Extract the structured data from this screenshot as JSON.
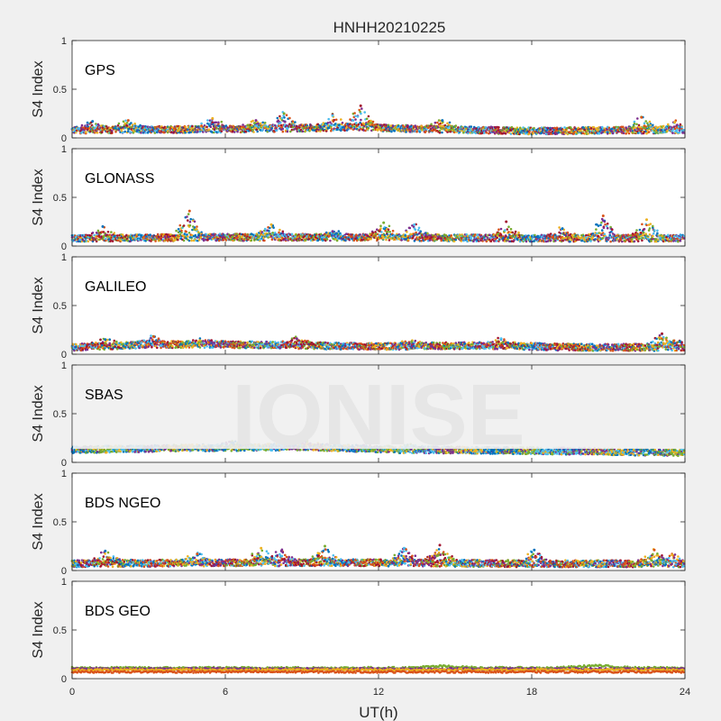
{
  "figure": {
    "title": "HNHH20210225",
    "xlabel": "UT(h)",
    "watermark": "IONISE",
    "background_color": "#f0f0f0",
    "axes_color": "#ffffff"
  },
  "chart_data": [
    {
      "type": "scatter",
      "system": "GPS",
      "title": "HNHH20210225",
      "ylabel": "S4 Index",
      "xlim": [
        0,
        24
      ],
      "ylim": [
        0,
        1
      ],
      "xticks": [
        0,
        6,
        12,
        18,
        24
      ],
      "yticks": [
        0,
        0.5,
        1
      ],
      "series_colors": [
        "#0072BD",
        "#D95319",
        "#EDB120",
        "#7E2F8E",
        "#77AC30",
        "#4DBEEE",
        "#A2142F"
      ],
      "baseline": [
        [
          0,
          0.08
        ],
        [
          6,
          0.09
        ],
        [
          9,
          0.1
        ],
        [
          11,
          0.11
        ],
        [
          14,
          0.09
        ],
        [
          18,
          0.07
        ],
        [
          22,
          0.08
        ],
        [
          24,
          0.08
        ]
      ],
      "peaks": [
        [
          0.8,
          0.17
        ],
        [
          2.2,
          0.18
        ],
        [
          5.5,
          0.2
        ],
        [
          7.2,
          0.18
        ],
        [
          8.3,
          0.25
        ],
        [
          10.2,
          0.23
        ],
        [
          11.3,
          0.33
        ],
        [
          14.5,
          0.18
        ],
        [
          22.3,
          0.21
        ],
        [
          23.6,
          0.16
        ]
      ]
    },
    {
      "type": "scatter",
      "system": "GLONASS",
      "ylabel": "S4 Index",
      "xlim": [
        0,
        24
      ],
      "ylim": [
        0,
        1
      ],
      "xticks": [
        0,
        6,
        12,
        18,
        24
      ],
      "yticks": [
        0,
        0.5,
        1
      ],
      "series_colors": [
        "#0072BD",
        "#D95319",
        "#EDB120",
        "#7E2F8E",
        "#77AC30",
        "#4DBEEE",
        "#A2142F"
      ],
      "baseline": [
        [
          0,
          0.08
        ],
        [
          6,
          0.09
        ],
        [
          12,
          0.09
        ],
        [
          18,
          0.08
        ],
        [
          24,
          0.08
        ]
      ],
      "peaks": [
        [
          1.2,
          0.2
        ],
        [
          4.6,
          0.36
        ],
        [
          7.8,
          0.22
        ],
        [
          10.2,
          0.15
        ],
        [
          12.2,
          0.24
        ],
        [
          13.4,
          0.22
        ],
        [
          17.0,
          0.25
        ],
        [
          19.2,
          0.18
        ],
        [
          20.8,
          0.31
        ],
        [
          22.5,
          0.27
        ]
      ]
    },
    {
      "type": "scatter",
      "system": "GALILEO",
      "ylabel": "S4 Index",
      "xlim": [
        0,
        24
      ],
      "ylim": [
        0,
        1
      ],
      "xticks": [
        0,
        6,
        12,
        18,
        24
      ],
      "yticks": [
        0,
        0.5,
        1
      ],
      "series_colors": [
        "#0072BD",
        "#D95319",
        "#EDB120",
        "#7E2F8E",
        "#77AC30",
        "#4DBEEE",
        "#A2142F"
      ],
      "baseline": [
        [
          0,
          0.07
        ],
        [
          3,
          0.1
        ],
        [
          6,
          0.1
        ],
        [
          9,
          0.09
        ],
        [
          12,
          0.08
        ],
        [
          16,
          0.09
        ],
        [
          20,
          0.07
        ],
        [
          24,
          0.07
        ]
      ],
      "peaks": [
        [
          1.3,
          0.15
        ],
        [
          3.2,
          0.18
        ],
        [
          5.0,
          0.14
        ],
        [
          8.8,
          0.16
        ],
        [
          13.3,
          0.13
        ],
        [
          16.8,
          0.16
        ],
        [
          23.1,
          0.21
        ],
        [
          23.8,
          0.13
        ]
      ]
    },
    {
      "type": "scatter",
      "system": "SBAS",
      "ylabel": "S4 Index",
      "xlim": [
        0,
        24
      ],
      "ylim": [
        0,
        1
      ],
      "xticks": [
        0,
        6,
        12,
        18,
        24
      ],
      "yticks": [
        0,
        0.5,
        1
      ],
      "series_colors": [
        "#0072BD",
        "#77AC30",
        "#4DBEEE",
        "#7E2F8E",
        "#EDB120"
      ],
      "baseline": [
        [
          0,
          0.13
        ],
        [
          5,
          0.15
        ],
        [
          9,
          0.16
        ],
        [
          13,
          0.13
        ],
        [
          18,
          0.12
        ],
        [
          24,
          0.1
        ]
      ],
      "peaks": [
        [
          6.3,
          0.2
        ],
        [
          9.2,
          0.22
        ],
        [
          13.3,
          0.17
        ]
      ]
    },
    {
      "type": "scatter",
      "system": "BDS NGEO",
      "ylabel": "S4 Index",
      "xlim": [
        0,
        24
      ],
      "ylim": [
        0,
        1
      ],
      "xticks": [
        0,
        6,
        12,
        18,
        24
      ],
      "yticks": [
        0,
        0.5,
        1
      ],
      "series_colors": [
        "#0072BD",
        "#D95319",
        "#EDB120",
        "#7E2F8E",
        "#77AC30",
        "#4DBEEE",
        "#A2142F"
      ],
      "baseline": [
        [
          0,
          0.07
        ],
        [
          6,
          0.08
        ],
        [
          12,
          0.08
        ],
        [
          18,
          0.07
        ],
        [
          24,
          0.07
        ]
      ],
      "peaks": [
        [
          1.3,
          0.2
        ],
        [
          4.9,
          0.17
        ],
        [
          7.4,
          0.23
        ],
        [
          8.2,
          0.2
        ],
        [
          9.9,
          0.25
        ],
        [
          13.0,
          0.23
        ],
        [
          14.4,
          0.26
        ],
        [
          18.1,
          0.21
        ],
        [
          22.8,
          0.21
        ],
        [
          23.5,
          0.16
        ]
      ]
    },
    {
      "type": "scatter",
      "system": "BDS GEO",
      "xlabel": "UT(h)",
      "ylabel": "S4 Index",
      "xlim": [
        0,
        24
      ],
      "ylim": [
        0,
        1
      ],
      "xticks": [
        0,
        6,
        12,
        18,
        24
      ],
      "yticks": [
        0,
        0.5,
        1
      ],
      "series_colors": [
        "#77AC30",
        "#7E2F8E",
        "#EDB120",
        "#D95319"
      ],
      "series_levels": [
        0.11,
        0.1,
        0.09,
        0.07
      ],
      "baseline": [
        [
          0,
          0.09
        ],
        [
          24,
          0.09
        ]
      ],
      "peaks": [
        [
          14.5,
          0.14
        ],
        [
          20.5,
          0.15
        ]
      ]
    }
  ]
}
